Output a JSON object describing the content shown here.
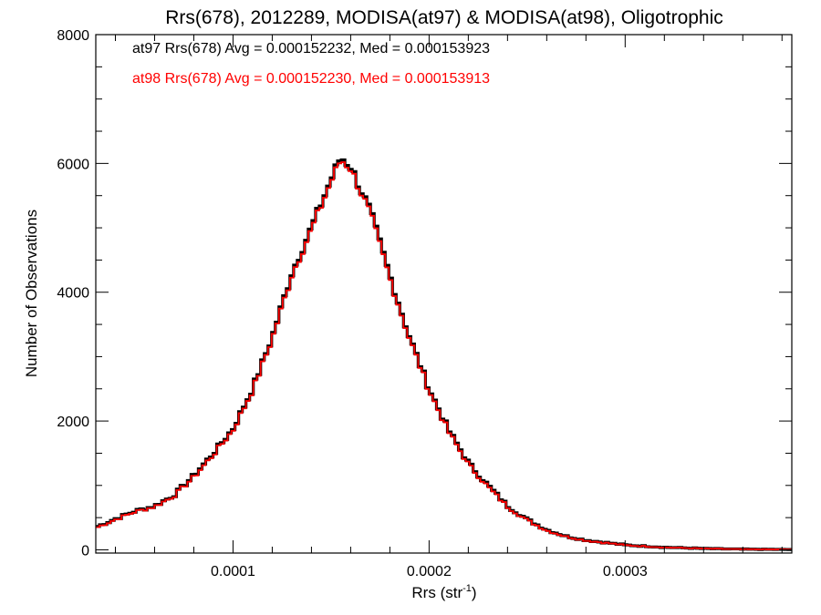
{
  "chart_data": {
    "type": "histogram-step",
    "title": "Rrs(678), 2012289, MODISA(at97) & MODISA(at98), Oligotrophic",
    "xlabel_main": "Rrs (str",
    "xlabel_exp": "-1",
    "xlabel_close": ")",
    "ylabel": "Number of Observations",
    "xlim": [
      3e-05,
      0.000385
    ],
    "ylim": [
      -50,
      8000
    ],
    "x_ticks": [
      {
        "value": 0.0001,
        "label": "0.0001"
      },
      {
        "value": 0.0002,
        "label": "0.0002"
      },
      {
        "value": 0.0003,
        "label": "0.0003"
      }
    ],
    "y_ticks": [
      {
        "value": 0,
        "label": "0"
      },
      {
        "value": 2000,
        "label": "2000"
      },
      {
        "value": 4000,
        "label": "4000"
      },
      {
        "value": 6000,
        "label": "6000"
      },
      {
        "value": 8000,
        "label": "8000"
      }
    ],
    "legend_placement": "top-left",
    "legend": [
      {
        "text": "at97 Rrs(678) Avg = 0.000152232, Med = 0.000153923",
        "color": "#000000"
      },
      {
        "text": "at98 Rrs(678) Avg = 0.000152230, Med = 0.000153913",
        "color": "#ff0000"
      }
    ],
    "series": [
      {
        "key": "at97",
        "color": "#000000",
        "x": [
          3e-05,
          4e-05,
          5e-05,
          6e-05,
          7e-05,
          8e-05,
          9e-05,
          0.0001,
          0.00011,
          0.00012,
          0.00013,
          0.00014,
          0.00015,
          0.000155,
          0.00016,
          0.00017,
          0.00018,
          0.00019,
          0.0002,
          0.00021,
          0.00022,
          0.00023,
          0.00024,
          0.00025,
          0.00026,
          0.00027,
          0.00028,
          0.0003,
          0.00032,
          0.00034,
          0.00036,
          0.000385
        ],
        "y": [
          350,
          480,
          600,
          680,
          850,
          1150,
          1500,
          1880,
          2500,
          3300,
          4300,
          5000,
          5750,
          6100,
          5950,
          5250,
          4250,
          3300,
          2500,
          1850,
          1350,
          1000,
          680,
          470,
          310,
          210,
          150,
          75,
          40,
          20,
          10,
          5
        ]
      },
      {
        "key": "at98",
        "color": "#ff0000",
        "x": [
          3e-05,
          4e-05,
          5e-05,
          6e-05,
          7e-05,
          8e-05,
          9e-05,
          0.0001,
          0.00011,
          0.00012,
          0.00013,
          0.00014,
          0.00015,
          0.000155,
          0.00016,
          0.00017,
          0.00018,
          0.00019,
          0.0002,
          0.00021,
          0.00022,
          0.00023,
          0.00024,
          0.00025,
          0.00026,
          0.00027,
          0.00028,
          0.0003,
          0.00032,
          0.00034,
          0.00036,
          0.000385
        ],
        "y": [
          340,
          470,
          590,
          670,
          840,
          1130,
          1480,
          1860,
          2480,
          3280,
          4270,
          4970,
          5720,
          6060,
          5920,
          5220,
          4220,
          3280,
          2480,
          1830,
          1330,
          980,
          670,
          460,
          300,
          205,
          145,
          72,
          38,
          19,
          9,
          5
        ]
      }
    ]
  }
}
